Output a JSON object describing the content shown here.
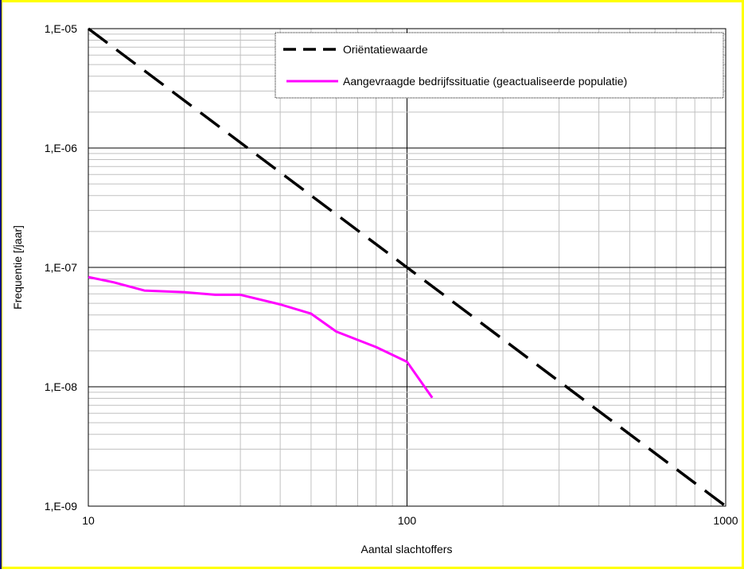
{
  "colors": {
    "frame_border": "#ffff00",
    "frame_left": "#000080",
    "reference_line": "#000000",
    "scenario_line": "#ff00ff",
    "grid_major": "#000000",
    "grid_minor": "#c0c0c0"
  },
  "chart_data": {
    "type": "line",
    "title": "",
    "xlabel": "Aantal slachtoffers",
    "ylabel": "Frequentie [/jaar]",
    "x_scale": "log",
    "y_scale": "log",
    "xlim": [
      10,
      1000
    ],
    "ylim": [
      1e-09,
      1e-05
    ],
    "x_ticks": [
      {
        "value": 10,
        "label": "10"
      },
      {
        "value": 100,
        "label": "100"
      },
      {
        "value": 1000,
        "label": "1000"
      }
    ],
    "y_ticks": [
      {
        "value": 1e-05,
        "label": "1,E-05"
      },
      {
        "value": 1e-06,
        "label": "1,E-06"
      },
      {
        "value": 1e-07,
        "label": "1,E-07"
      },
      {
        "value": 1e-08,
        "label": "1,E-08"
      },
      {
        "value": 1e-09,
        "label": "1,E-09"
      }
    ],
    "grid": true,
    "legend_position": "top-right",
    "series": [
      {
        "name": "Oriëntatiewaarde",
        "style": "dashed",
        "x": [
          10,
          1000
        ],
        "y": [
          1e-05,
          1e-09
        ]
      },
      {
        "name": "Aangevraagde bedrijfssituatie (geactualiseerde populatie)",
        "style": "solid",
        "x": [
          10,
          12,
          15,
          20,
          25,
          30,
          40,
          50,
          60,
          80,
          100,
          120
        ],
        "y": [
          8.3e-08,
          7.5e-08,
          6.4e-08,
          6.2e-08,
          5.9e-08,
          5.9e-08,
          4.9e-08,
          4.1e-08,
          2.9e-08,
          2.15e-08,
          1.62e-08,
          8.1e-09
        ]
      }
    ]
  }
}
